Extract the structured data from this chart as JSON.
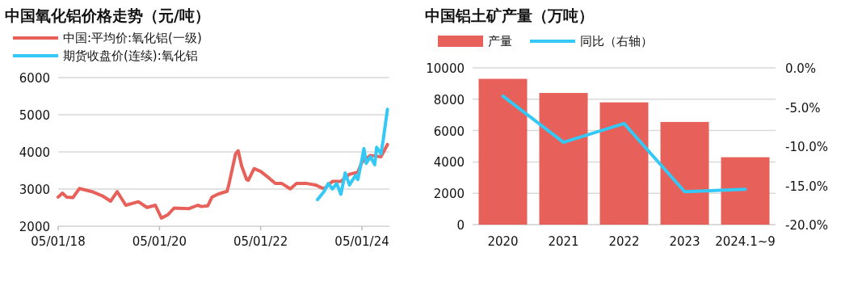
{
  "chart_data": [
    {
      "type": "line",
      "title": "中国氧化铝价格走势（元/吨）",
      "legend": "top left",
      "grid": "y",
      "xlim": [
        "2018-05-01",
        "2024-11-15"
      ],
      "xticks": [
        {
          "value": "2018-05-01",
          "label": "05/01/18"
        },
        {
          "value": "2020-05-01",
          "label": "05/01/20"
        },
        {
          "value": "2022-05-01",
          "label": "05/01/22"
        },
        {
          "value": "2024-05-01",
          "label": "05/01/24"
        }
      ],
      "ylim": [
        2000,
        6000
      ],
      "yticks": [
        2000,
        3000,
        4000,
        5000,
        6000
      ],
      "series": [
        {
          "name": "中国:平均价:氧化铝(一级)",
          "color": "#e8605a",
          "x": [
            "2018-05-01",
            "2018-06-01",
            "2018-07-01",
            "2018-08-15",
            "2018-10-01",
            "2019-01-01",
            "2019-03-15",
            "2019-05-15",
            "2019-07-01",
            "2019-09-01",
            "2019-12-01",
            "2020-02-01",
            "2020-04-01",
            "2020-05-15",
            "2020-07-01",
            "2020-08-15",
            "2020-12-01",
            "2021-02-01",
            "2021-03-01",
            "2021-04-15",
            "2021-05-15",
            "2021-07-01",
            "2021-09-01",
            "2021-09-15",
            "2021-11-01",
            "2021-11-20",
            "2021-12-15",
            "2022-01-20",
            "2022-02-01",
            "2022-03-15",
            "2022-05-01",
            "2022-07-01",
            "2022-08-15",
            "2022-10-01",
            "2022-12-01",
            "2023-01-15",
            "2023-04-01",
            "2023-06-01",
            "2023-08-01",
            "2023-10-01",
            "2023-12-01",
            "2024-02-01",
            "2024-04-01",
            "2024-05-01",
            "2024-07-01",
            "2024-09-15",
            "2024-11-01"
          ],
          "values": [
            2785,
            2890,
            2785,
            2770,
            3015,
            2930,
            2820,
            2675,
            2930,
            2565,
            2660,
            2505,
            2565,
            2220,
            2310,
            2490,
            2475,
            2565,
            2530,
            2550,
            2785,
            2870,
            2940,
            3145,
            3945,
            4030,
            3620,
            3255,
            3235,
            3550,
            3475,
            3295,
            3150,
            3150,
            3005,
            3150,
            3150,
            3110,
            3005,
            3205,
            3205,
            3400,
            3450,
            3725,
            3905,
            3870,
            4200
          ]
        },
        {
          "name": "期货收盘价(连续):氧化铝",
          "color": "#33c8f5",
          "x": [
            "2023-06-15",
            "2023-08-01",
            "2023-09-01",
            "2023-10-01",
            "2023-11-01",
            "2023-12-01",
            "2024-01-01",
            "2024-02-01",
            "2024-03-15",
            "2024-04-01",
            "2024-05-01",
            "2024-05-15",
            "2024-06-01",
            "2024-07-01",
            "2024-08-01",
            "2024-08-15",
            "2024-09-15",
            "2024-10-01",
            "2024-11-01"
          ],
          "values": [
            2715,
            2930,
            3150,
            3005,
            3150,
            2860,
            3435,
            3110,
            3365,
            3255,
            3800,
            4090,
            3690,
            3870,
            3655,
            4125,
            3945,
            4310,
            5145
          ]
        }
      ]
    },
    {
      "type": "bar",
      "title": "中国铝土矿产量（万吨）",
      "legend": "top",
      "grid": "y",
      "categories": [
        "2020",
        "2021",
        "2022",
        "2023",
        "2024.1~9"
      ],
      "ylim": [
        0,
        10000
      ],
      "yticks": [
        0,
        2000,
        4000,
        6000,
        8000,
        10000
      ],
      "y2lim": [
        -20,
        0
      ],
      "y2ticks": [
        {
          "value": -20,
          "label": "-20.0%"
        },
        {
          "value": -15,
          "label": "-15.0%"
        },
        {
          "value": -10,
          "label": "-10.0%"
        },
        {
          "value": -5,
          "label": "-5.0%"
        },
        {
          "value": 0,
          "label": "0.0%"
        }
      ],
      "series": [
        {
          "name": "产量",
          "color": "#e8605a",
          "values": [
            9300,
            8400,
            7800,
            6550,
            4300
          ]
        },
        {
          "name": "同比（右轴）",
          "type": "line",
          "axis": "y2",
          "color": "#33c8f5",
          "values": [
            -3.6,
            -9.5,
            -7.1,
            -15.8,
            -15.5
          ]
        }
      ]
    }
  ]
}
